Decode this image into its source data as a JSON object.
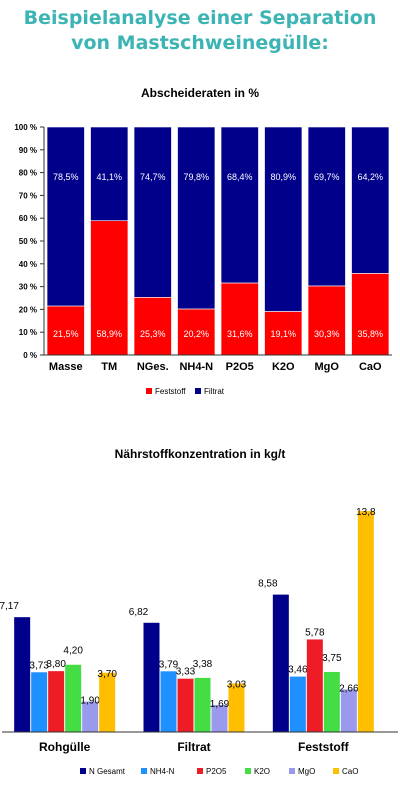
{
  "header": {
    "title_line1": "Beispielanalyse einer Separation",
    "title_line2": "von Mastschweinegülle:"
  },
  "colors": {
    "title": "#3cb4b4",
    "feststoff": "#ff0000",
    "filtrat": "#00008b",
    "n_gesamt": "#00008b",
    "nh4_n": "#1e90ff",
    "p2o5": "#ee1c25",
    "k2o": "#44dd44",
    "mgo": "#9999ee",
    "cao": "#ffbf00"
  },
  "chart_data": [
    {
      "type": "bar",
      "stacked": true,
      "title": "Abscheideraten in %",
      "categories": [
        "Masse",
        "TM",
        "NGes.",
        "NH4-N",
        "P2O5",
        "K2O",
        "MgO",
        "CaO"
      ],
      "series": [
        {
          "name": "Feststoff",
          "values": [
            21.5,
            58.9,
            25.3,
            20.2,
            31.6,
            19.1,
            30.3,
            35.8
          ],
          "labels": [
            "21,5%",
            "58,9%",
            "25,3%",
            "20,2%",
            "31,6%",
            "19,1%",
            "30,3%",
            "35,8%"
          ]
        },
        {
          "name": "Filtrat",
          "values": [
            78.5,
            41.1,
            74.7,
            79.8,
            68.4,
            80.9,
            69.7,
            64.2
          ],
          "labels": [
            "78,5%",
            "41,1%",
            "74,7%",
            "79,8%",
            "68,4%",
            "80,9%",
            "69,7%",
            "64,2%"
          ]
        }
      ],
      "yticks": [
        "0 %",
        "10 %",
        "20 %",
        "30 %",
        "40 %",
        "50 %",
        "60 %",
        "70 %",
        "80 %",
        "90 %",
        "100 %"
      ],
      "ylim": [
        0,
        100
      ],
      "legend_position": "bottom"
    },
    {
      "type": "bar",
      "title": "Nährstoffkonzentration in kg/t",
      "categories": [
        "Rohgülle",
        "Filtrat",
        "Feststoff"
      ],
      "series": [
        {
          "name": "N Gesamt",
          "values": [
            7.17,
            6.82,
            8.58
          ],
          "labels": [
            "7,17",
            "6,82",
            "8,58"
          ]
        },
        {
          "name": "NH4-N",
          "values": [
            3.73,
            3.79,
            3.46
          ],
          "labels": [
            "3,73",
            "3,79",
            "3,46"
          ]
        },
        {
          "name": "P2O5",
          "values": [
            3.8,
            3.33,
            5.78
          ],
          "labels": [
            "3,80",
            "3,33",
            "5,78"
          ]
        },
        {
          "name": "K2O",
          "values": [
            4.2,
            3.38,
            3.75
          ],
          "labels": [
            "4,20",
            "3,38",
            "3,75"
          ]
        },
        {
          "name": "MgO",
          "values": [
            1.9,
            1.69,
            2.66
          ],
          "labels": [
            "1,90",
            "1,69",
            "2,66"
          ]
        },
        {
          "name": "CaO",
          "values": [
            3.7,
            3.03,
            13.8
          ],
          "labels": [
            "3,70",
            "3,03",
            "13,8"
          ]
        }
      ],
      "ylim": [
        0,
        14.8
      ],
      "grid": false,
      "legend_position": "bottom"
    }
  ]
}
